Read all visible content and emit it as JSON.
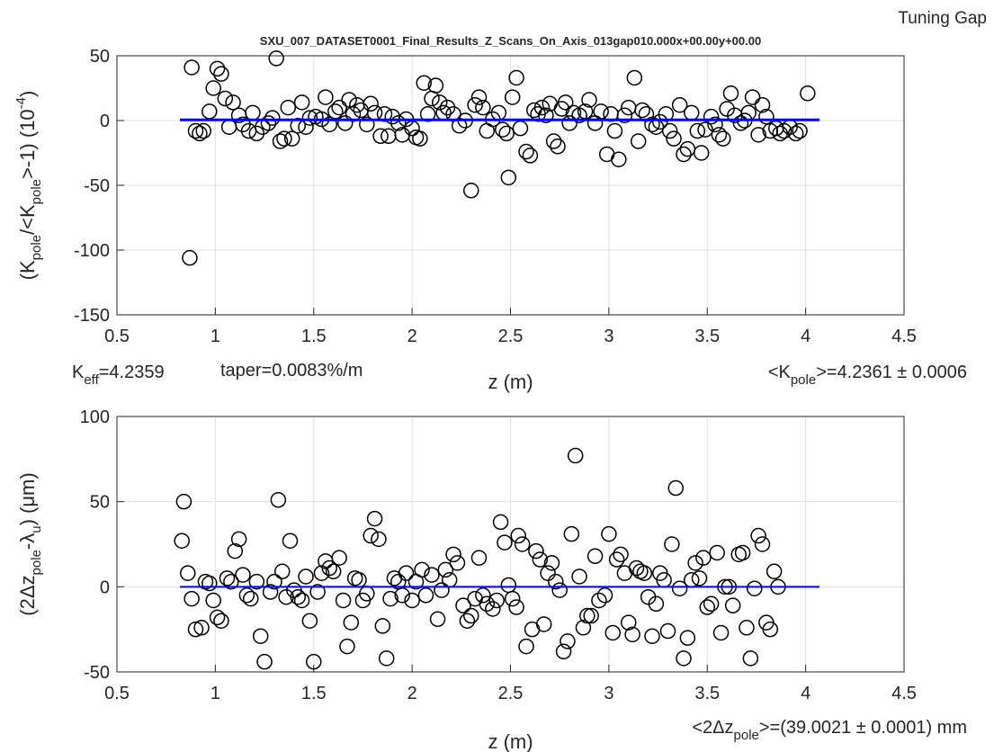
{
  "header": {
    "corner": "Tuning Gap"
  },
  "chart_data": [
    {
      "type": "scatter",
      "title": "SXU_007_DATASET0001_Final_Results_Z_Scans_On_Axis_013gap010.000x+00.00y+00.00",
      "xlabel": "z (m)",
      "ylabel": [
        {
          "text": "(K"
        },
        {
          "text": "pole",
          "sub": true
        },
        {
          "text": "/<K"
        },
        {
          "text": "pole",
          "sub": true
        },
        {
          "text": ">-1) (10"
        },
        {
          "text": "-4",
          "sup": true
        },
        {
          "text": ")"
        }
      ],
      "annotations": [
        [
          {
            "text": "K"
          },
          {
            "text": "eff",
            "sub": true
          },
          {
            "text": "=4.2359"
          }
        ],
        [
          {
            "text": "taper=0.0083%/m"
          }
        ],
        [
          {
            "text": "<K"
          },
          {
            "text": "pole",
            "sub": true
          },
          {
            "text": ">=4.2361 ± 0.0006"
          }
        ]
      ],
      "xlim": [
        0.5,
        4.5
      ],
      "xticks": [
        0.5,
        1,
        1.5,
        2,
        2.5,
        3,
        3.5,
        4,
        4.5
      ],
      "ylim": [
        -150,
        50
      ],
      "yticks": [
        -150,
        -100,
        -50,
        0,
        50
      ],
      "grid": true,
      "color": "#000000",
      "x": [
        0.87,
        0.88,
        0.9,
        0.92,
        0.94,
        0.97,
        0.99,
        1.01,
        1.03,
        1.05,
        1.07,
        1.09,
        1.12,
        1.14,
        1.17,
        1.19,
        1.21,
        1.24,
        1.27,
        1.29,
        1.31,
        1.33,
        1.35,
        1.37,
        1.39,
        1.42,
        1.44,
        1.46,
        1.48,
        1.51,
        1.54,
        1.56,
        1.58,
        1.61,
        1.63,
        1.66,
        1.68,
        1.7,
        1.72,
        1.74,
        1.77,
        1.79,
        1.81,
        1.84,
        1.86,
        1.88,
        1.9,
        1.93,
        1.95,
        1.97,
        2.0,
        2.02,
        2.04,
        2.06,
        2.08,
        2.1,
        2.12,
        2.14,
        2.16,
        2.18,
        2.21,
        2.24,
        2.27,
        2.3,
        2.32,
        2.34,
        2.36,
        2.38,
        2.41,
        2.44,
        2.46,
        2.48,
        2.49,
        2.51,
        2.53,
        2.55,
        2.58,
        2.6,
        2.62,
        2.64,
        2.66,
        2.68,
        2.7,
        2.72,
        2.74,
        2.76,
        2.78,
        2.8,
        2.82,
        2.85,
        2.88,
        2.9,
        2.93,
        2.96,
        2.99,
        3.01,
        3.03,
        3.05,
        3.08,
        3.1,
        3.13,
        3.15,
        3.17,
        3.19,
        3.22,
        3.24,
        3.26,
        3.29,
        3.31,
        3.33,
        3.36,
        3.38,
        3.4,
        3.42,
        3.45,
        3.47,
        3.49,
        3.52,
        3.54,
        3.56,
        3.58,
        3.6,
        3.62,
        3.64,
        3.67,
        3.69,
        3.71,
        3.73,
        3.76,
        3.78,
        3.8,
        3.82,
        3.85,
        3.87,
        3.89,
        3.92,
        3.95,
        3.97,
        4.01
      ],
      "values": [
        -106,
        41,
        -8,
        -10,
        -8,
        7,
        25,
        40,
        36,
        17,
        -5,
        14,
        4,
        -3,
        -8,
        6,
        -10,
        -5,
        -2,
        2,
        48,
        -16,
        -14,
        10,
        -14,
        -4,
        14,
        -5,
        2,
        3,
        1,
        18,
        -3,
        7,
        10,
        -2,
        16,
        5,
        12,
        8,
        -3,
        13,
        6,
        -12,
        5,
        -12,
        3,
        -2,
        -11,
        1,
        -6,
        -13,
        -14,
        29,
        5,
        17,
        27,
        14,
        6,
        10,
        5,
        -4,
        0,
        -54,
        12,
        18,
        10,
        -8,
        1,
        6,
        -7,
        -10,
        -44,
        18,
        33,
        -6,
        -24,
        -27,
        8,
        5,
        10,
        4,
        13,
        -16,
        -20,
        9,
        14,
        -2,
        6,
        4,
        7,
        16,
        -2,
        7,
        -26,
        5,
        -8,
        -30,
        4,
        10,
        33,
        -16,
        8,
        5,
        -3,
        -5,
        -1,
        5,
        -8,
        -14,
        12,
        -26,
        -22,
        6,
        -8,
        -25,
        -7,
        3,
        -3,
        -11,
        -14,
        9,
        21,
        4,
        -2,
        0,
        6,
        18,
        -11,
        12,
        3,
        -8,
        -6,
        -10,
        -8,
        -5,
        -10,
        -8,
        21
      ],
      "fit": {
        "x": [
          0.82,
          4.07
        ],
        "values": [
          0.5,
          0.5
        ],
        "color": "#0000ff"
      }
    },
    {
      "type": "scatter",
      "xlabel": "z (m)",
      "ylabel": [
        {
          "text": "(2Δz"
        },
        {
          "text": "pole",
          "sub": true
        },
        {
          "text": "-λ"
        },
        {
          "text": "u",
          "sub": true
        },
        {
          "text": ") (μm)"
        }
      ],
      "annotations": [
        [
          {
            "text": "<2Δz"
          },
          {
            "text": "pole",
            "sub": true
          },
          {
            "text": ">=(39.0021 ± 0.0001) mm"
          }
        ]
      ],
      "xlim": [
        0.5,
        4.5
      ],
      "xticks": [
        0.5,
        1,
        1.5,
        2,
        2.5,
        3,
        3.5,
        4,
        4.5
      ],
      "ylim": [
        -50,
        100
      ],
      "yticks": [
        -50,
        0,
        50,
        100
      ],
      "grid": true,
      "color": "#000000",
      "x": [
        0.83,
        0.84,
        0.86,
        0.88,
        0.9,
        0.93,
        0.95,
        0.97,
        0.99,
        1.01,
        1.03,
        1.06,
        1.08,
        1.1,
        1.12,
        1.14,
        1.16,
        1.18,
        1.21,
        1.23,
        1.25,
        1.28,
        1.3,
        1.32,
        1.34,
        1.36,
        1.38,
        1.4,
        1.42,
        1.44,
        1.46,
        1.48,
        1.5,
        1.52,
        1.54,
        1.56,
        1.58,
        1.6,
        1.63,
        1.65,
        1.67,
        1.69,
        1.71,
        1.73,
        1.75,
        1.77,
        1.79,
        1.81,
        1.83,
        1.85,
        1.87,
        1.89,
        1.91,
        1.93,
        1.95,
        1.97,
        2.0,
        2.02,
        2.05,
        2.07,
        2.1,
        2.13,
        2.15,
        2.17,
        2.19,
        2.21,
        2.23,
        2.26,
        2.28,
        2.3,
        2.32,
        2.34,
        2.36,
        2.38,
        2.41,
        2.43,
        2.45,
        2.47,
        2.49,
        2.51,
        2.53,
        2.54,
        2.56,
        2.58,
        2.61,
        2.63,
        2.65,
        2.67,
        2.69,
        2.71,
        2.73,
        2.75,
        2.77,
        2.79,
        2.81,
        2.83,
        2.85,
        2.87,
        2.89,
        2.91,
        2.93,
        2.95,
        2.98,
        3.0,
        3.02,
        3.04,
        3.06,
        3.08,
        3.1,
        3.12,
        3.14,
        3.16,
        3.18,
        3.2,
        3.22,
        3.24,
        3.26,
        3.28,
        3.3,
        3.32,
        3.34,
        3.36,
        3.38,
        3.4,
        3.42,
        3.44,
        3.46,
        3.48,
        3.5,
        3.52,
        3.55,
        3.57,
        3.59,
        3.61,
        3.63,
        3.66,
        3.68,
        3.7,
        3.72,
        3.74,
        3.76,
        3.78,
        3.8,
        3.82,
        3.84,
        3.86
      ],
      "values": [
        27,
        50,
        8,
        -7,
        -25,
        -24,
        3,
        2,
        -8,
        -18,
        -20,
        5,
        3,
        21,
        28,
        7,
        -5,
        -7,
        3,
        -29,
        -44,
        -3,
        3,
        51,
        9,
        -6,
        27,
        -2,
        -6,
        -8,
        6,
        -20,
        -44,
        -3,
        8,
        15,
        11,
        9,
        17,
        -8,
        -35,
        -21,
        5,
        4,
        -8,
        -4,
        30,
        40,
        28,
        -23,
        -42,
        -7,
        5,
        3,
        -5,
        8,
        -8,
        3,
        10,
        -5,
        7,
        -19,
        -2,
        10,
        4,
        19,
        14,
        -11,
        -20,
        -17,
        -7,
        17,
        -5,
        -10,
        -13,
        -8,
        38,
        26,
        1,
        -7,
        -12,
        30,
        25,
        -35,
        -25,
        21,
        16,
        -22,
        8,
        14,
        3,
        -2,
        -38,
        -32,
        31,
        77,
        6,
        -24,
        -17,
        -17,
        18,
        -8,
        -5,
        31,
        -27,
        16,
        19,
        8,
        -21,
        -28,
        11,
        9,
        8,
        -6,
        -29,
        -10,
        8,
        4,
        -26,
        25,
        58,
        -1,
        -42,
        -30,
        4,
        14,
        5,
        17,
        -12,
        -10,
        20,
        -27,
        0,
        0,
        -11,
        19,
        20,
        -24,
        -42,
        -1,
        30,
        25,
        -21,
        -25,
        9,
        0
      ],
      "fit": {
        "x": [
          0.82,
          4.07
        ],
        "values": [
          0,
          0
        ],
        "color": "#0000ff"
      }
    }
  ]
}
